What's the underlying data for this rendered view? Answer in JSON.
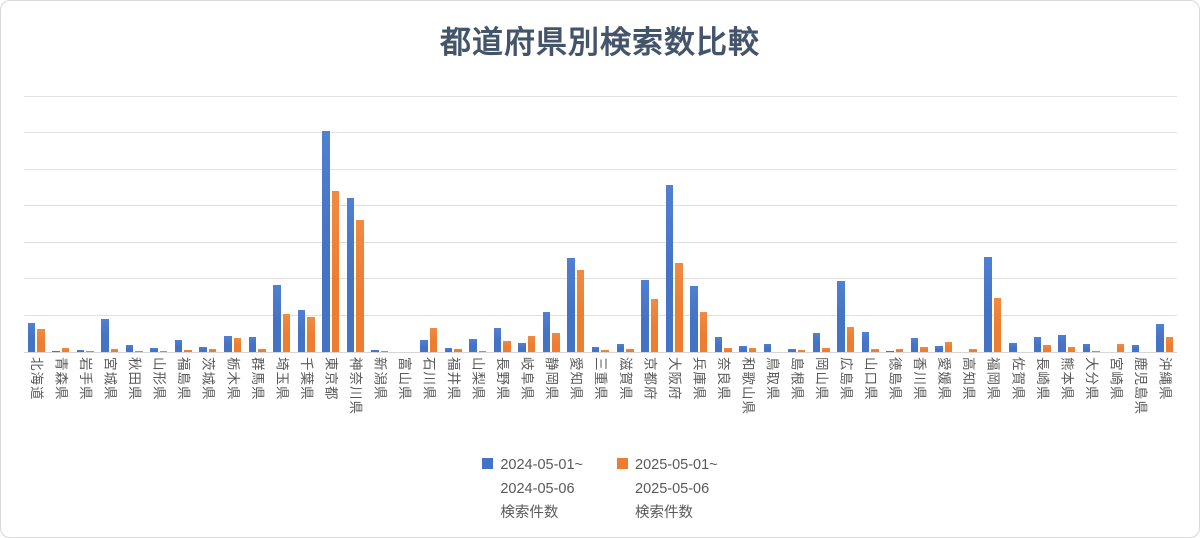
{
  "title": "都道府県別検索数比較",
  "legend": [
    {
      "id": "2024",
      "color": "#4472C4",
      "label_lines": [
        "2024-05-01~",
        "2024-05-06",
        "検索件数"
      ]
    },
    {
      "id": "2025",
      "color": "#ED7D31",
      "label_lines": [
        "2025-05-01~",
        "2025-05-06",
        "検索件数"
      ]
    }
  ],
  "chart_data": {
    "type": "bar",
    "title": "都道府県別検索数比較",
    "categories": [
      "北海道",
      "青森県",
      "岩手県",
      "宮城県",
      "秋田県",
      "山形県",
      "福島県",
      "茨城県",
      "栃木県",
      "群馬県",
      "埼玉県",
      "千葉県",
      "東京都",
      "神奈川県",
      "新潟県",
      "富山県",
      "石川県",
      "福井県",
      "山梨県",
      "長野県",
      "岐阜県",
      "静岡県",
      "愛知県",
      "三重県",
      "滋賀県",
      "京都府",
      "大阪府",
      "兵庫県",
      "奈良県",
      "和歌山県",
      "鳥取県",
      "島根県",
      "岡山県",
      "広島県",
      "山口県",
      "徳島県",
      "香川県",
      "愛媛県",
      "高知県",
      "福岡県",
      "佐賀県",
      "長崎県",
      "熊本県",
      "大分県",
      "宮崎県",
      "鹿児島県",
      "沖縄県"
    ],
    "series": [
      {
        "name": "2024-05-01~ 2024-05-06 検索件数",
        "color": "#4472C4",
        "values": [
          79,
          2,
          5,
          90,
          18,
          10,
          32,
          14,
          45,
          40,
          185,
          116,
          607,
          424,
          6,
          0,
          34,
          11,
          35,
          65,
          25,
          109,
          257,
          14,
          23,
          199,
          459,
          182,
          40,
          16,
          23,
          7,
          51,
          194,
          54,
          3,
          38,
          16,
          0,
          260,
          26,
          42,
          48,
          21,
          0,
          20,
          77
        ]
      },
      {
        "name": "2025-05-01~ 2025-05-06 検索件数",
        "color": "#ED7D31",
        "values": [
          63,
          10,
          3,
          8,
          3,
          2,
          6,
          8,
          38,
          8,
          103,
          96,
          442,
          363,
          2,
          0,
          67,
          9,
          3,
          30,
          43,
          52,
          226,
          5,
          7,
          145,
          243,
          110,
          12,
          10,
          0,
          5,
          12,
          68,
          9,
          9,
          14,
          28,
          9,
          148,
          0,
          19,
          13,
          2,
          23,
          0,
          42
        ]
      }
    ],
    "xlabel": "",
    "ylabel": "",
    "ylim": [
      0,
      700
    ],
    "gridline_interval": 100,
    "grid": true,
    "y_axis_tick_labels_visible": false,
    "x_label_rotation_deg": 90,
    "legend_position": "bottom"
  }
}
